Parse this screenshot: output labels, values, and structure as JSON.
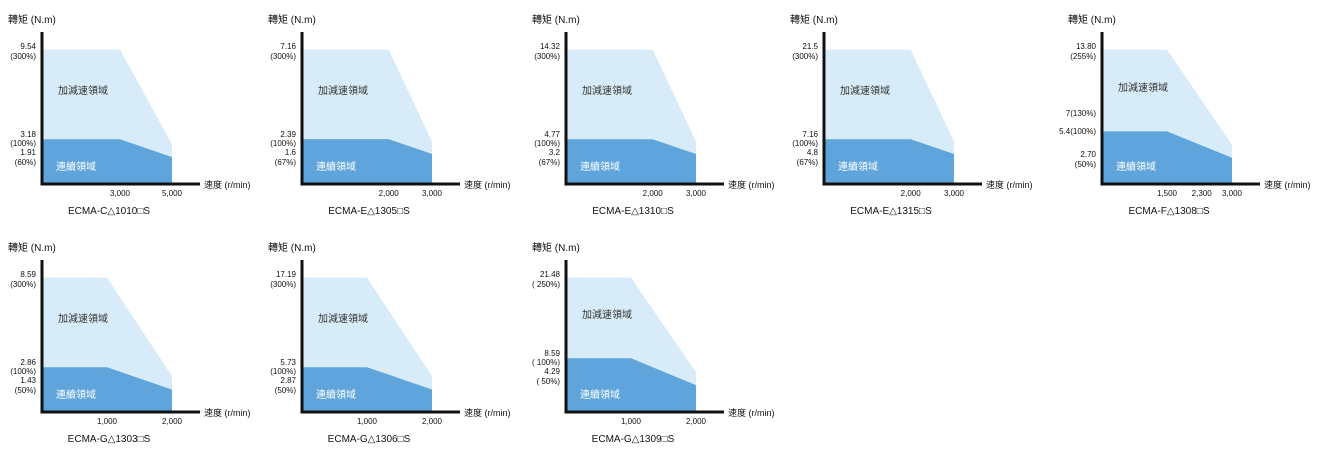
{
  "colors": {
    "accel_zone": "#d7ecf8",
    "continuous_zone": "#5fa5db",
    "axis": "#111111"
  },
  "common": {
    "y_axis_label": "轉矩 (N.m)",
    "x_axis_label": "速度 (r/min)",
    "accel_zone_label": "加減速領域",
    "continuous_zone_label": "連續領域"
  },
  "chart_data": [
    {
      "type": "area",
      "model": "ECMA-C△1010□S",
      "rated_speed": 3000,
      "max_speed": 5000,
      "peak_torque": 9.54,
      "peak_label": "9.54\n(300%)",
      "rated_torque": 3.18,
      "rated_label": "3.18\n(100%)",
      "end_torque": 1.91,
      "end_label": "1.91\n(60%)",
      "x_ticks": [
        "3,000",
        "5,000"
      ],
      "x_tick_values": [
        3000,
        5000
      ]
    },
    {
      "type": "area",
      "model": "ECMA-E△1305□S",
      "rated_speed": 2000,
      "max_speed": 3000,
      "peak_torque": 7.16,
      "peak_label": "7.16\n(300%)",
      "rated_torque": 2.39,
      "rated_label": "2.39\n(100%)",
      "end_torque": 1.6,
      "end_label": "1.6\n(67%)",
      "x_ticks": [
        "2,000",
        "3,000"
      ],
      "x_tick_values": [
        2000,
        3000
      ]
    },
    {
      "type": "area",
      "model": "ECMA-E△1310□S",
      "rated_speed": 2000,
      "max_speed": 3000,
      "peak_torque": 14.32,
      "peak_label": "14.32\n(300%)",
      "rated_torque": 4.77,
      "rated_label": "4.77\n(100%)",
      "end_torque": 3.2,
      "end_label": "3.2\n(67%)",
      "x_ticks": [
        "2,000",
        "3,000"
      ],
      "x_tick_values": [
        2000,
        3000
      ]
    },
    {
      "type": "area",
      "model": "ECMA-E△1315□S",
      "rated_speed": 2000,
      "max_speed": 3000,
      "peak_torque": 21.5,
      "peak_label": "21.5\n(300%)",
      "rated_torque": 7.16,
      "rated_label": "7.16\n(100%)",
      "end_torque": 4.8,
      "end_label": "4.8\n(67%)",
      "x_ticks": [
        "2,000",
        "3,000"
      ],
      "x_tick_values": [
        2000,
        3000
      ]
    },
    {
      "type": "area",
      "model": "ECMA-F△1308□S",
      "rated_speed": 1500,
      "knee_speed": 2300,
      "max_speed": 3000,
      "peak_torque": 13.8,
      "peak_label": "13.80\n(255%)",
      "knee_torque": 7,
      "knee_label": "7(130%)",
      "rated_torque": 5.4,
      "rated_label": "5.4(100%)",
      "end_torque": 2.7,
      "end_label": "2.70\n(50%)",
      "x_ticks": [
        "1,500",
        "2,300",
        "3,000"
      ],
      "x_tick_values": [
        1500,
        2300,
        3000
      ]
    },
    {
      "type": "area",
      "model": "ECMA-G△1303□S",
      "rated_speed": 1000,
      "max_speed": 2000,
      "peak_torque": 8.59,
      "peak_label": "8.59\n(300%)",
      "rated_torque": 2.86,
      "rated_label": "2.86\n(100%)",
      "end_torque": 1.43,
      "end_label": "1.43\n(50%)",
      "x_ticks": [
        "1,000",
        "2,000"
      ],
      "x_tick_values": [
        1000,
        2000
      ]
    },
    {
      "type": "area",
      "model": "ECMA-G△1306□S",
      "rated_speed": 1000,
      "max_speed": 2000,
      "peak_torque": 17.19,
      "peak_label": "17.19\n(300%)",
      "rated_torque": 5.73,
      "rated_label": "5.73\n(100%)",
      "end_torque": 2.87,
      "end_label": "2.87\n(50%)",
      "x_ticks": [
        "1,000",
        "2,000"
      ],
      "x_tick_values": [
        1000,
        2000
      ]
    },
    {
      "type": "area",
      "model": "ECMA-G△1309□S",
      "rated_speed": 1000,
      "max_speed": 2000,
      "peak_torque": 21.48,
      "peak_label": "21.48\n( 250%)",
      "rated_torque": 8.59,
      "rated_label": "8.59\n( 100%)",
      "end_torque": 4.29,
      "end_label": "4.29\n( 50%)",
      "x_ticks": [
        "1,000",
        "2,000"
      ],
      "x_tick_values": [
        1000,
        2000
      ]
    }
  ]
}
